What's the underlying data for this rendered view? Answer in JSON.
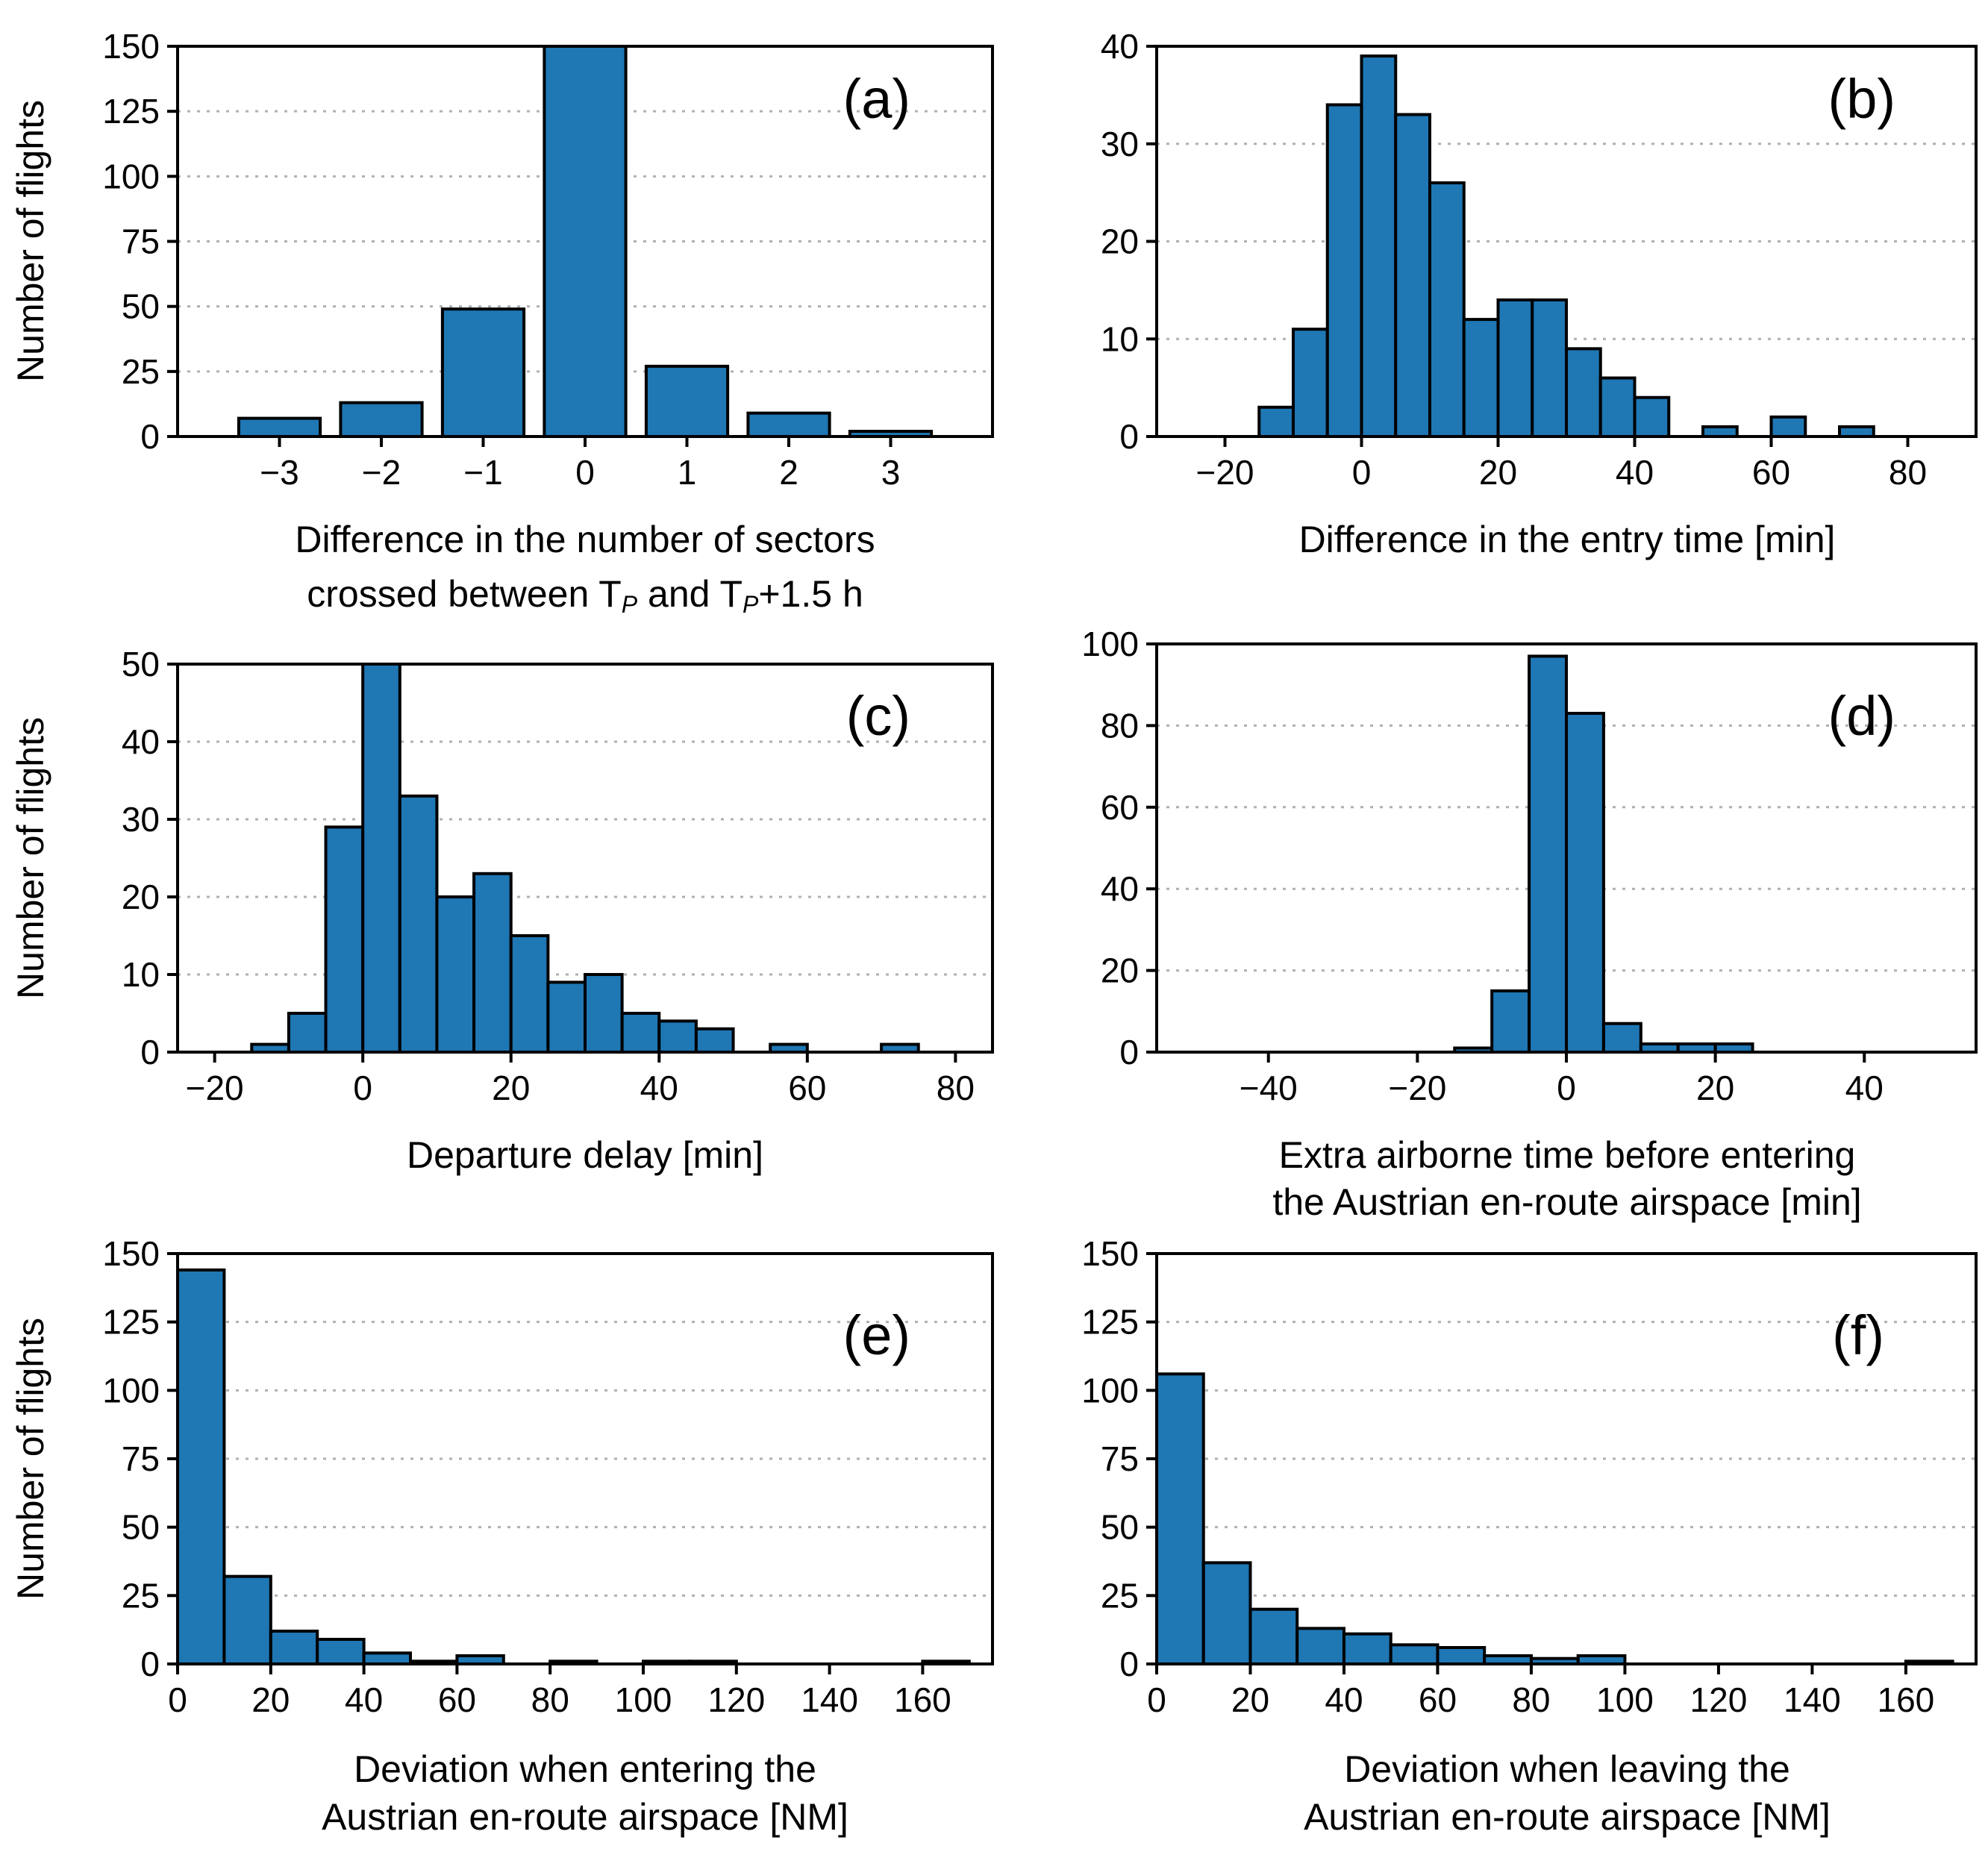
{
  "chart_data": [
    {
      "id": "a",
      "type": "bar",
      "panel_label": "(a)",
      "ylabel": "Number of flights",
      "xlabel_lines": [
        "Difference in the number of sectors",
        "crossed between Tₚ and Tₚ+1.5 h"
      ],
      "xlim": [
        -4,
        4
      ],
      "ylim": [
        0,
        150
      ],
      "xticks": [
        -3,
        -2,
        -1,
        0,
        1,
        2,
        3
      ],
      "xtick_labels": [
        "−3",
        "−2",
        "−1",
        "0",
        "1",
        "2",
        "3"
      ],
      "yticks": [
        0,
        25,
        50,
        75,
        100,
        125,
        150
      ],
      "ytick_labels": [
        "0",
        "25",
        "50",
        "75",
        "100",
        "125",
        "150"
      ],
      "bar_width": 0.8,
      "bars": [
        {
          "x": -3,
          "value": 7
        },
        {
          "x": -2,
          "value": 13
        },
        {
          "x": -1,
          "value": 49
        },
        {
          "x": 0,
          "value": 150
        },
        {
          "x": 1,
          "value": 27
        },
        {
          "x": 2,
          "value": 9
        },
        {
          "x": 3,
          "value": 2
        }
      ],
      "grid": "horizontal dotted"
    },
    {
      "id": "b",
      "type": "bar",
      "panel_label": "(b)",
      "ylabel": "",
      "xlabel_lines": [
        "Difference in the entry time [min]"
      ],
      "xlim": [
        -30,
        90
      ],
      "ylim": [
        0,
        40
      ],
      "xticks": [
        -20,
        0,
        20,
        40,
        60,
        80
      ],
      "xtick_labels": [
        "−20",
        "0",
        "20",
        "40",
        "60",
        "80"
      ],
      "yticks": [
        0,
        10,
        20,
        30,
        40
      ],
      "ytick_labels": [
        "0",
        "10",
        "20",
        "30",
        "40"
      ],
      "bin_width": 5,
      "bins_start": [
        -15,
        -10,
        -5,
        0,
        5,
        10,
        15,
        20,
        25,
        30,
        35,
        40,
        45,
        50,
        55,
        60,
        65,
        70
      ],
      "values": [
        3,
        11,
        34,
        39,
        33,
        26,
        12,
        14,
        14,
        9,
        6,
        4,
        0,
        1,
        0,
        2,
        0,
        1
      ],
      "grid": "horizontal dotted"
    },
    {
      "id": "c",
      "type": "bar",
      "panel_label": "(c)",
      "ylabel": "Number of flights",
      "xlabel_lines": [
        "Departure delay [min]"
      ],
      "xlim": [
        -25,
        85
      ],
      "ylim": [
        0,
        50
      ],
      "xticks": [
        -20,
        0,
        20,
        40,
        60,
        80
      ],
      "xtick_labels": [
        "−20",
        "0",
        "20",
        "40",
        "60",
        "80"
      ],
      "yticks": [
        0,
        10,
        20,
        30,
        40,
        50
      ],
      "ytick_labels": [
        "0",
        "10",
        "20",
        "30",
        "40",
        "50"
      ],
      "bin_width": 5,
      "bins_start": [
        -15,
        -10,
        -5,
        0,
        5,
        10,
        15,
        20,
        25,
        30,
        35,
        40,
        45,
        50,
        55,
        60,
        65,
        70
      ],
      "values": [
        1,
        5,
        29,
        50,
        33,
        20,
        23,
        15,
        9,
        10,
        5,
        4,
        3,
        0,
        1,
        0,
        0,
        1
      ],
      "grid": "horizontal dotted"
    },
    {
      "id": "d",
      "type": "bar",
      "panel_label": "(d)",
      "ylabel": "",
      "xlabel_lines": [
        "Extra airborne time before entering",
        "the Austrian en-route airspace [min]"
      ],
      "xlim": [
        -55,
        55
      ],
      "ylim": [
        0,
        100
      ],
      "xticks": [
        -40,
        -20,
        0,
        20,
        40
      ],
      "xtick_labels": [
        "−40",
        "−20",
        "0",
        "20",
        "40"
      ],
      "yticks": [
        0,
        20,
        40,
        60,
        80,
        100
      ],
      "ytick_labels": [
        "0",
        "20",
        "40",
        "60",
        "80",
        "100"
      ],
      "bin_width": 5,
      "bins_start": [
        -15,
        -10,
        -5,
        0,
        5,
        10,
        15,
        20
      ],
      "values": [
        1,
        15,
        97,
        83,
        7,
        2,
        2,
        2
      ],
      "grid": "horizontal dotted"
    },
    {
      "id": "e",
      "type": "bar",
      "panel_label": "(e)",
      "ylabel": "Number of flights",
      "xlabel_lines": [
        "Deviation when entering the",
        "Austrian en-route airspace [NM]"
      ],
      "xlim": [
        0,
        175
      ],
      "ylim": [
        0,
        150
      ],
      "xticks": [
        0,
        20,
        40,
        60,
        80,
        100,
        120,
        140,
        160
      ],
      "xtick_labels": [
        "0",
        "20",
        "40",
        "60",
        "80",
        "100",
        "120",
        "140",
        "160"
      ],
      "yticks": [
        0,
        25,
        50,
        75,
        100,
        125,
        150
      ],
      "ytick_labels": [
        "0",
        "25",
        "50",
        "75",
        "100",
        "125",
        "150"
      ],
      "bin_width": 10,
      "bins_start": [
        0,
        10,
        20,
        30,
        40,
        50,
        60,
        70,
        80,
        90,
        100,
        110,
        120,
        130,
        140,
        150,
        160
      ],
      "values": [
        144,
        32,
        12,
        9,
        4,
        1,
        3,
        0,
        1,
        0,
        1,
        1,
        0,
        0,
        0,
        0,
        1
      ],
      "grid": "horizontal dotted"
    },
    {
      "id": "f",
      "type": "bar",
      "panel_label": "(f)",
      "ylabel": "",
      "xlabel_lines": [
        "Deviation when leaving the",
        "Austrian en-route airspace [NM]"
      ],
      "xlim": [
        0,
        175
      ],
      "ylim": [
        0,
        150
      ],
      "xticks": [
        0,
        20,
        40,
        60,
        80,
        100,
        120,
        140,
        160
      ],
      "xtick_labels": [
        "0",
        "20",
        "40",
        "60",
        "80",
        "100",
        "120",
        "140",
        "160"
      ],
      "yticks": [
        0,
        25,
        50,
        75,
        100,
        125,
        150
      ],
      "ytick_labels": [
        "0",
        "25",
        "50",
        "75",
        "100",
        "125",
        "150"
      ],
      "bin_width": 10,
      "bins_start": [
        0,
        10,
        20,
        30,
        40,
        50,
        60,
        70,
        80,
        90,
        100,
        110,
        120,
        130,
        140,
        150,
        160
      ],
      "values": [
        106,
        37,
        20,
        13,
        11,
        7,
        6,
        3,
        2,
        3,
        0,
        0,
        0,
        0,
        0,
        0,
        1
      ],
      "grid": "horizontal dotted"
    }
  ],
  "colors": {
    "bar_fill": "#1f77b4",
    "bar_edge": "#000000",
    "grid": "#b0b0b0",
    "background": "#ffffff"
  }
}
